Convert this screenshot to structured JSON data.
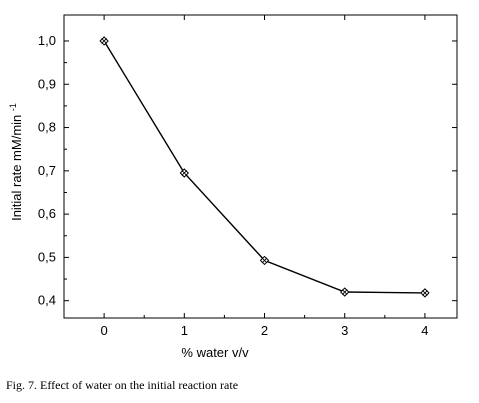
{
  "chart_data": {
    "type": "line",
    "x": [
      0,
      1,
      2,
      3,
      4
    ],
    "series": [
      {
        "values": [
          1.0,
          0.695,
          0.493,
          0.42,
          0.418
        ]
      }
    ],
    "xlabel": "% water v/v",
    "ylabel": "Initial rate mM/min",
    "ylabel_superscript": "-1",
    "xlim": [
      -0.5,
      4.4
    ],
    "ylim": [
      0.36,
      1.06
    ],
    "xticks": [
      0,
      1,
      2,
      3,
      4
    ],
    "xtick_labels": [
      "0",
      "1",
      "2",
      "3",
      "4"
    ],
    "yticks": [
      0.4,
      0.5,
      0.6,
      0.7,
      0.8,
      0.9,
      1.0
    ],
    "ytick_labels": [
      "0,4",
      "0,5",
      "0,6",
      "0,7",
      "0,8",
      "0,9",
      "1,0"
    ],
    "grid": false,
    "line_color": "#000000",
    "marker": "crossed-diamond"
  },
  "caption": "Fig. 7. Effect of water on the initial reaction rate"
}
